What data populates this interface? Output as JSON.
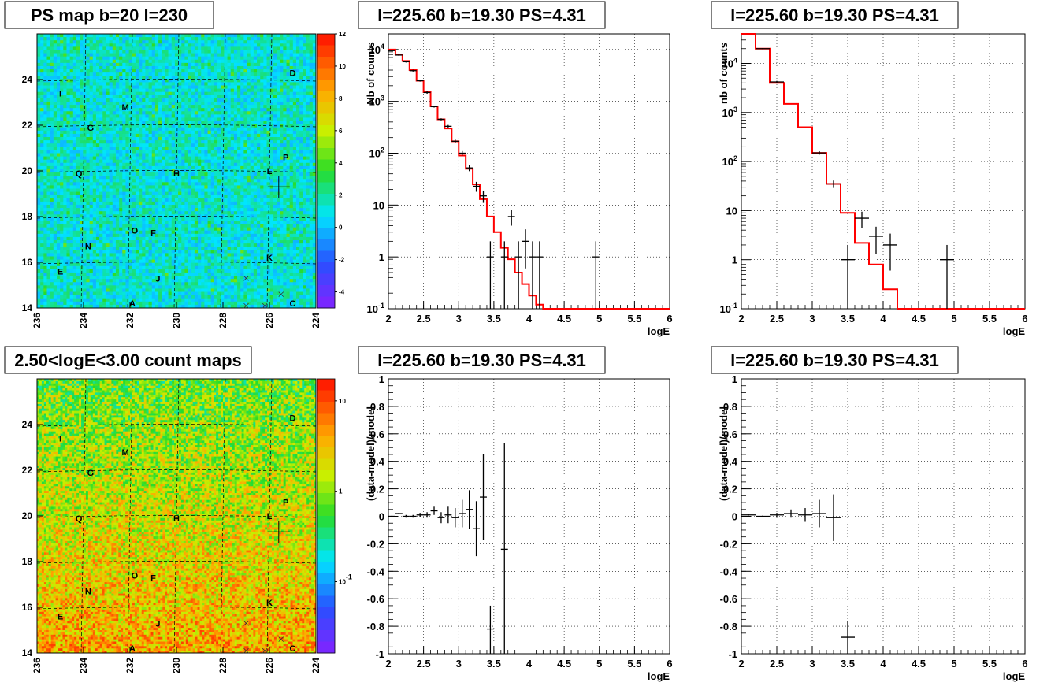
{
  "chart_data": [
    {
      "type": "heatmap",
      "title": "PS map b=20 l=230",
      "xlim": [
        236,
        224
      ],
      "ylim": [
        14,
        26
      ],
      "x_ticks": [
        "236",
        "234",
        "232",
        "230",
        "228",
        "226",
        "224"
      ],
      "y_ticks": [
        "14",
        "16",
        "18",
        "20",
        "22",
        "24"
      ],
      "z_ticks": [
        "12",
        "10",
        "8",
        "6",
        "4",
        "2",
        "0",
        "-2",
        "-4"
      ],
      "zlim": [
        -5,
        12
      ],
      "sources": [
        {
          "label": "A",
          "l": 231.9,
          "b": 14.2
        },
        {
          "label": "C",
          "l": 225.0,
          "b": 14.2
        },
        {
          "label": "D",
          "l": 225.0,
          "b": 24.3
        },
        {
          "label": "E",
          "l": 235.0,
          "b": 15.6
        },
        {
          "label": "F",
          "l": 231.0,
          "b": 17.3
        },
        {
          "label": "G",
          "l": 233.7,
          "b": 21.9
        },
        {
          "label": "H",
          "l": 230.0,
          "b": 19.9
        },
        {
          "label": "I",
          "l": 235.0,
          "b": 23.4
        },
        {
          "label": "J",
          "l": 230.8,
          "b": 15.3
        },
        {
          "label": "K",
          "l": 226.0,
          "b": 16.2
        },
        {
          "label": "L",
          "l": 226.0,
          "b": 20.0
        },
        {
          "label": "M",
          "l": 232.2,
          "b": 22.8
        },
        {
          "label": "N",
          "l": 233.8,
          "b": 16.7
        },
        {
          "label": "O",
          "l": 231.8,
          "b": 17.4
        },
        {
          "label": "P",
          "l": 225.3,
          "b": 20.6
        },
        {
          "label": "Q",
          "l": 234.2,
          "b": 19.9
        }
      ],
      "marker": {
        "l": 225.6,
        "b": 19.3
      }
    },
    {
      "type": "line",
      "title": "l=225.60 b=19.30 PS=4.31",
      "xlabel": "logE",
      "ylabel": "Nb of counts",
      "yscale": "log",
      "xlim": [
        2,
        6
      ],
      "ylim": [
        0.1,
        20000
      ],
      "x_ticks": [
        "2",
        "2.5",
        "3",
        "3.5",
        "4",
        "4.5",
        "5",
        "5.5",
        "6"
      ],
      "y_ticks": [
        {
          "v": 0.1,
          "label": "10",
          "sup": "-1"
        },
        {
          "v": 1,
          "label": "1",
          "sup": ""
        },
        {
          "v": 10,
          "label": "10",
          "sup": ""
        },
        {
          "v": 100,
          "label": "10",
          "sup": "2"
        },
        {
          "v": 1000,
          "label": "10",
          "sup": "3"
        },
        {
          "v": 10000,
          "label": "10",
          "sup": "4"
        }
      ],
      "series": [
        {
          "kind": "step",
          "color": "#ff0000",
          "edges": [
            2,
            2.1,
            2.2,
            2.3,
            2.4,
            2.5,
            2.6,
            2.7,
            2.8,
            2.9,
            3.0,
            3.1,
            3.2,
            3.3,
            3.4,
            3.5,
            3.6,
            3.7,
            3.8,
            3.9,
            4.0,
            4.1,
            4.2,
            6.0
          ],
          "values": [
            10000,
            8000,
            6000,
            4000,
            2500,
            1500,
            800,
            450,
            300,
            170,
            90,
            50,
            25,
            13,
            6,
            3,
            1.5,
            0.9,
            0.5,
            0.3,
            0.18,
            0.12,
            0.1
          ]
        },
        {
          "kind": "points",
          "color": "#000000",
          "points": [
            {
              "x": 2.05,
              "y": 9500,
              "lo": 9200,
              "hi": 9800
            },
            {
              "x": 2.15,
              "y": 7800,
              "lo": 7550,
              "hi": 8050
            },
            {
              "x": 2.25,
              "y": 5800,
              "lo": 5600,
              "hi": 6000
            },
            {
              "x": 2.35,
              "y": 3900,
              "lo": 3750,
              "hi": 4050
            },
            {
              "x": 2.45,
              "y": 2500,
              "lo": 2400,
              "hi": 2600
            },
            {
              "x": 2.55,
              "y": 1480,
              "lo": 1400,
              "hi": 1560
            },
            {
              "x": 2.65,
              "y": 790,
              "lo": 760,
              "hi": 820
            },
            {
              "x": 2.75,
              "y": 450,
              "lo": 430,
              "hi": 470
            },
            {
              "x": 2.85,
              "y": 330,
              "lo": 310,
              "hi": 350
            },
            {
              "x": 2.95,
              "y": 170,
              "lo": 157,
              "hi": 183
            },
            {
              "x": 3.05,
              "y": 100,
              "lo": 90,
              "hi": 110
            },
            {
              "x": 3.15,
              "y": 52,
              "lo": 45,
              "hi": 59
            },
            {
              "x": 3.25,
              "y": 23,
              "lo": 18,
              "hi": 28
            },
            {
              "x": 3.35,
              "y": 15,
              "lo": 11,
              "hi": 19
            },
            {
              "x": 3.45,
              "y": 1,
              "lo": 0.1,
              "hi": 2
            },
            {
              "x": 3.65,
              "y": 1,
              "lo": 0.1,
              "hi": 2
            },
            {
              "x": 3.75,
              "y": 6,
              "lo": 4,
              "hi": 8
            },
            {
              "x": 3.85,
              "y": 1,
              "lo": 0.1,
              "hi": 2
            },
            {
              "x": 3.95,
              "y": 2,
              "lo": 0.6,
              "hi": 3.4
            },
            {
              "x": 4.05,
              "y": 1,
              "lo": 0.1,
              "hi": 2
            },
            {
              "x": 4.15,
              "y": 1,
              "lo": 0.1,
              "hi": 2
            },
            {
              "x": 4.95,
              "y": 1,
              "lo": 0.1,
              "hi": 2
            }
          ]
        }
      ]
    },
    {
      "type": "line",
      "title": "l=225.60 b=19.30 PS=4.31",
      "xlabel": "logE",
      "ylabel": "nb of counts",
      "yscale": "log",
      "xlim": [
        2,
        6
      ],
      "ylim": [
        0.1,
        40000
      ],
      "x_ticks": [
        "2",
        "2.5",
        "3",
        "3.5",
        "4",
        "4.5",
        "5",
        "5.5",
        "6"
      ],
      "y_ticks": [
        {
          "v": 0.1,
          "label": "10",
          "sup": "-1"
        },
        {
          "v": 1,
          "label": "1",
          "sup": ""
        },
        {
          "v": 10,
          "label": "10",
          "sup": ""
        },
        {
          "v": 100,
          "label": "10",
          "sup": "2"
        },
        {
          "v": 1000,
          "label": "10",
          "sup": "3"
        },
        {
          "v": 10000,
          "label": "10",
          "sup": "4"
        }
      ],
      "series": [
        {
          "kind": "step",
          "color": "#ff0000",
          "edges": [
            2.0,
            2.2,
            2.4,
            2.6,
            2.8,
            3.0,
            3.2,
            3.4,
            3.6,
            3.8,
            4.0,
            4.2,
            6.0
          ],
          "values": [
            40000,
            20000,
            4000,
            1500,
            500,
            150,
            35,
            9,
            2.2,
            0.8,
            0.25,
            0.1
          ]
        },
        {
          "kind": "points",
          "color": "#000000",
          "points": [
            {
              "x": 2.3,
              "y": 20000,
              "lo": 19500,
              "hi": 20500
            },
            {
              "x": 2.5,
              "y": 4200,
              "lo": 4000,
              "hi": 4400
            },
            {
              "x": 3.1,
              "y": 150,
              "lo": 138,
              "hi": 162
            },
            {
              "x": 3.3,
              "y": 35,
              "lo": 29,
              "hi": 41
            },
            {
              "x": 3.5,
              "y": 1,
              "lo": 0.1,
              "hi": 2
            },
            {
              "x": 3.7,
              "y": 7,
              "lo": 4.5,
              "hi": 9.5
            },
            {
              "x": 3.9,
              "y": 3,
              "lo": 1.3,
              "hi": 4.7
            },
            {
              "x": 4.1,
              "y": 2,
              "lo": 0.6,
              "hi": 3.4
            },
            {
              "x": 4.9,
              "y": 1,
              "lo": 0.1,
              "hi": 2
            }
          ]
        }
      ]
    },
    {
      "type": "heatmap",
      "title": "2.50<logE<3.00 count maps",
      "xlim": [
        236,
        224
      ],
      "ylim": [
        14,
        26
      ],
      "x_ticks": [
        "236",
        "234",
        "232",
        "230",
        "228",
        "226",
        "224"
      ],
      "y_ticks": [
        "14",
        "16",
        "18",
        "20",
        "22",
        "24"
      ],
      "z_ticks": [
        {
          "label": "10",
          "sup": ""
        },
        {
          "label": "1",
          "sup": ""
        },
        {
          "label": "10",
          "sup": "-1"
        }
      ],
      "zscale": "log",
      "sources": [
        {
          "label": "A",
          "l": 231.9,
          "b": 14.2
        },
        {
          "label": "C",
          "l": 225.0,
          "b": 14.2
        },
        {
          "label": "D",
          "l": 225.0,
          "b": 24.3
        },
        {
          "label": "E",
          "l": 235.0,
          "b": 15.6
        },
        {
          "label": "F",
          "l": 231.0,
          "b": 17.3
        },
        {
          "label": "G",
          "l": 233.7,
          "b": 21.9
        },
        {
          "label": "H",
          "l": 230.0,
          "b": 19.9
        },
        {
          "label": "I",
          "l": 235.0,
          "b": 23.4
        },
        {
          "label": "J",
          "l": 230.8,
          "b": 15.3
        },
        {
          "label": "K",
          "l": 226.0,
          "b": 16.2
        },
        {
          "label": "L",
          "l": 226.0,
          "b": 20.0
        },
        {
          "label": "M",
          "l": 232.2,
          "b": 22.8
        },
        {
          "label": "N",
          "l": 233.8,
          "b": 16.7
        },
        {
          "label": "O",
          "l": 231.8,
          "b": 17.4
        },
        {
          "label": "P",
          "l": 225.3,
          "b": 20.6
        },
        {
          "label": "Q",
          "l": 234.2,
          "b": 19.9
        }
      ],
      "marker": {
        "l": 225.6,
        "b": 19.3
      }
    },
    {
      "type": "scatter",
      "title": "l=225.60 b=19.30 PS=4.31",
      "xlabel": "logE",
      "ylabel": "(data-model)/model",
      "xlim": [
        2,
        6
      ],
      "ylim": [
        -1,
        1
      ],
      "x_ticks": [
        "2",
        "2.5",
        "3",
        "3.5",
        "4",
        "4.5",
        "5",
        "5.5",
        "6"
      ],
      "y_ticks": [
        "-1",
        "-0.8",
        "-0.6",
        "-0.4",
        "-0.2",
        "0",
        "0.2",
        "0.4",
        "0.6",
        "0.8",
        "1"
      ],
      "points": [
        {
          "x": 2.05,
          "y": 0.0,
          "lo": -0.005,
          "hi": 0.005
        },
        {
          "x": 2.15,
          "y": 0.02,
          "lo": 0.015,
          "hi": 0.025
        },
        {
          "x": 2.25,
          "y": 0.0,
          "lo": -0.01,
          "hi": 0.01
        },
        {
          "x": 2.35,
          "y": 0.0,
          "lo": -0.01,
          "hi": 0.01
        },
        {
          "x": 2.45,
          "y": 0.01,
          "lo": -0.005,
          "hi": 0.025
        },
        {
          "x": 2.55,
          "y": 0.01,
          "lo": -0.01,
          "hi": 0.03
        },
        {
          "x": 2.65,
          "y": 0.04,
          "lo": 0.01,
          "hi": 0.07
        },
        {
          "x": 2.75,
          "y": -0.01,
          "lo": -0.05,
          "hi": 0.03
        },
        {
          "x": 2.85,
          "y": 0.01,
          "lo": -0.05,
          "hi": 0.07
        },
        {
          "x": 2.95,
          "y": -0.01,
          "lo": -0.08,
          "hi": 0.06
        },
        {
          "x": 3.05,
          "y": 0.02,
          "lo": -0.08,
          "hi": 0.12
        },
        {
          "x": 3.15,
          "y": 0.05,
          "lo": -0.09,
          "hi": 0.19
        },
        {
          "x": 3.25,
          "y": -0.09,
          "lo": -0.29,
          "hi": 0.11
        },
        {
          "x": 3.35,
          "y": 0.14,
          "lo": -0.17,
          "hi": 0.45
        },
        {
          "x": 3.45,
          "y": -0.82,
          "lo": -1.0,
          "hi": -0.65
        },
        {
          "x": 3.65,
          "y": -0.24,
          "lo": -1.0,
          "hi": 0.53
        }
      ]
    },
    {
      "type": "scatter",
      "title": "l=225.60 b=19.30 PS=4.31",
      "xlabel": "logE",
      "ylabel": "(data-model)/model",
      "xlim": [
        2,
        6
      ],
      "ylim": [
        -1,
        1
      ],
      "x_ticks": [
        "2",
        "2.5",
        "3",
        "3.5",
        "4",
        "4.5",
        "5",
        "5.5",
        "6"
      ],
      "y_ticks": [
        "-1",
        "-0.8",
        "-0.6",
        "-0.4",
        "-0.2",
        "0",
        "0.2",
        "0.4",
        "0.6",
        "0.8",
        "1"
      ],
      "points": [
        {
          "x": 2.1,
          "y": 0.01,
          "lo": 0.005,
          "hi": 0.015
        },
        {
          "x": 2.3,
          "y": 0.0,
          "lo": -0.005,
          "hi": 0.005
        },
        {
          "x": 2.5,
          "y": 0.01,
          "lo": -0.005,
          "hi": 0.025
        },
        {
          "x": 2.7,
          "y": 0.02,
          "lo": -0.01,
          "hi": 0.05
        },
        {
          "x": 2.9,
          "y": 0.01,
          "lo": -0.04,
          "hi": 0.06
        },
        {
          "x": 3.1,
          "y": 0.02,
          "lo": -0.08,
          "hi": 0.12
        },
        {
          "x": 3.3,
          "y": -0.01,
          "lo": -0.18,
          "hi": 0.16
        },
        {
          "x": 3.5,
          "y": -0.88,
          "lo": -1.0,
          "hi": -0.76
        }
      ]
    }
  ]
}
